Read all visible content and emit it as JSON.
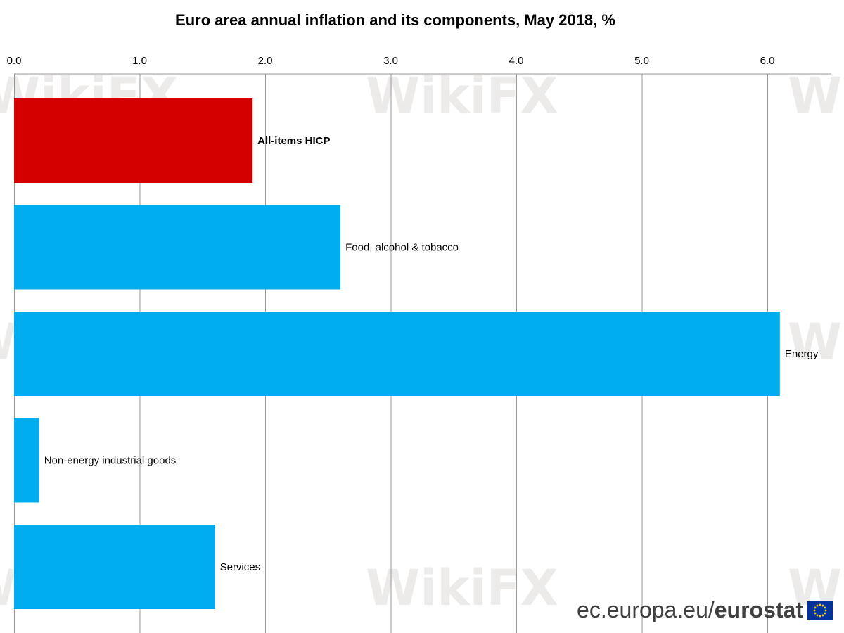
{
  "chart_data": {
    "type": "bar",
    "orientation": "horizontal",
    "title": "Euro area annual inflation and its components, May 2018, %",
    "categories": [
      "All-items HICP",
      "Food, alcohol & tobacco",
      "Energy",
      "Non-energy industrial goods",
      "Services"
    ],
    "values": [
      1.9,
      2.6,
      6.1,
      0.2,
      1.6
    ],
    "bar_colors": [
      "#d40000",
      "#00aeef",
      "#00aeef",
      "#00aeef",
      "#00aeef"
    ],
    "highlighted_category": "All-items HICP",
    "xlim": [
      0,
      6.5
    ],
    "ticks": [
      "0.0",
      "1.0",
      "2.0",
      "3.0",
      "4.0",
      "5.0",
      "6.0"
    ],
    "tick_values": [
      0,
      1,
      2,
      3,
      4,
      5,
      6
    ],
    "axis_position": "top",
    "grid": true,
    "xlabel": "",
    "ylabel": ""
  },
  "watermark": "WikiFX",
  "footer": {
    "site": "ec.europa.eu/",
    "brand": "eurostat"
  }
}
